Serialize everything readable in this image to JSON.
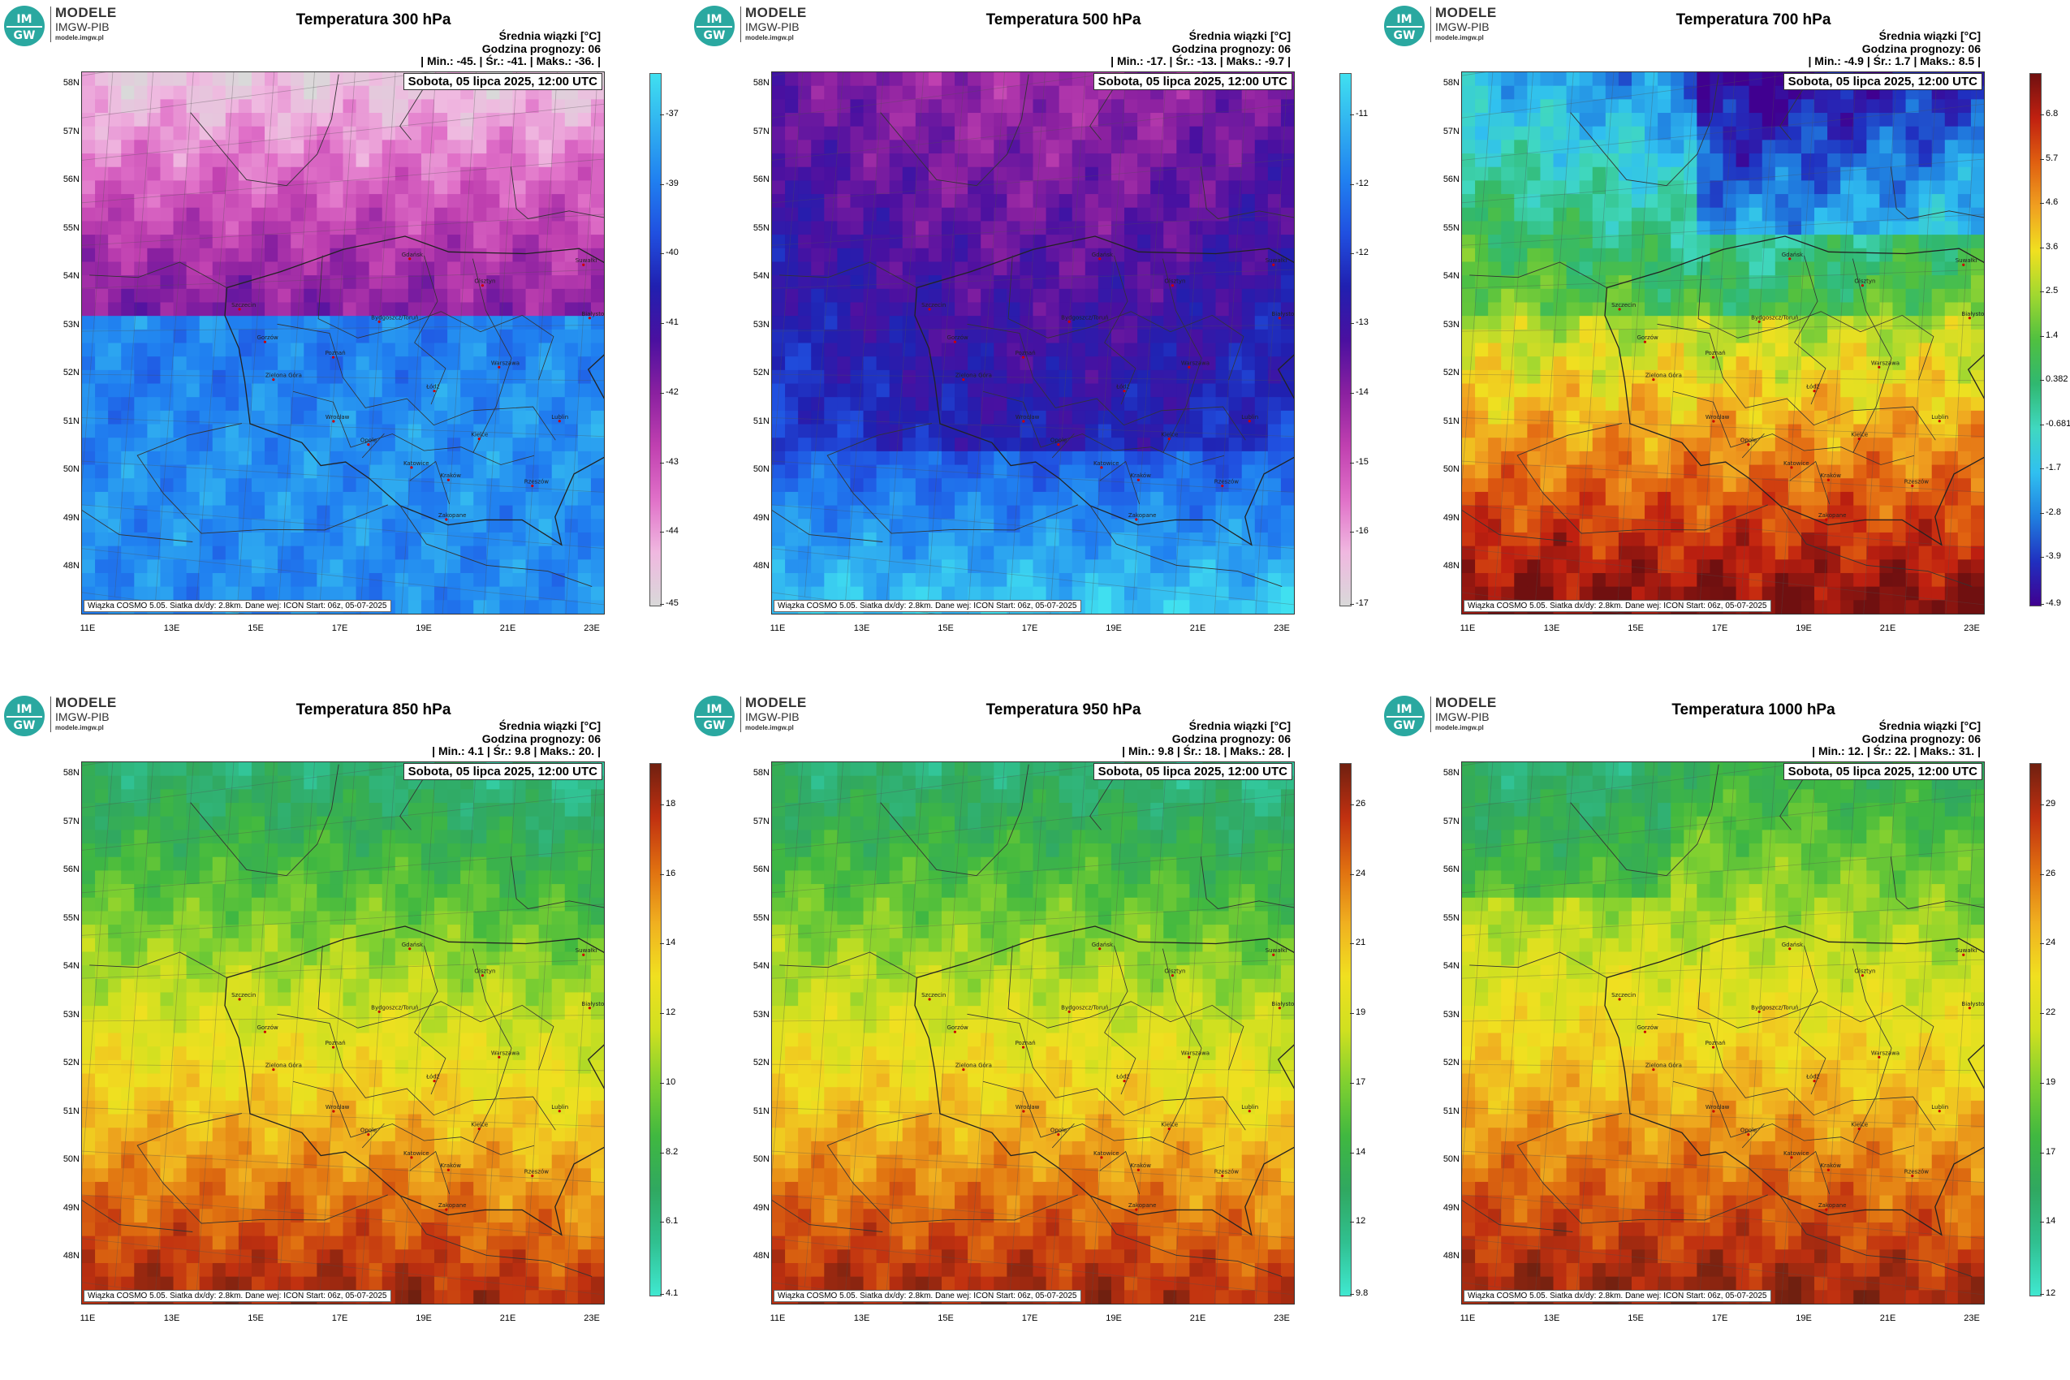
{
  "logo": {
    "badge_top": "IM",
    "badge_bottom": "GW",
    "line1": "MODELE",
    "line2": "IMGW-PIB",
    "line3": "modele.imgw.pl"
  },
  "common": {
    "header1": "Średnia wiązki [°C]",
    "header2": "Godzina prognozy: 06",
    "date": "Sobota, 05 lipca 2025, 12:00 UTC",
    "footer": "Wiązka COSMO 5.05. Siatka dx/dy: 2.8km. Dane wej: ICON Start: 06z, 05-07-2025",
    "lat_labels": [
      "58N",
      "57N",
      "56N",
      "55N",
      "54N",
      "53N",
      "52N",
      "51N",
      "50N",
      "49N",
      "48N"
    ],
    "lon_labels": [
      "11E",
      "13E",
      "15E",
      "17E",
      "19E",
      "21E",
      "23E"
    ]
  },
  "cities": [
    {
      "name": "Gdańsk",
      "lon": 18.65,
      "lat": 54.35
    },
    {
      "name": "Olsztyn",
      "lon": 20.48,
      "lat": 53.78
    },
    {
      "name": "Suwałki",
      "lon": 22.93,
      "lat": 54.1
    },
    {
      "name": "Białystok",
      "lon": 23.16,
      "lat": 53.13
    },
    {
      "name": "Szczecin",
      "lon": 14.55,
      "lat": 53.43
    },
    {
      "name": "Bydgoszcz/Toruń",
      "lon": 18.0,
      "lat": 53.12
    },
    {
      "name": "Gorzów",
      "lon": 15.23,
      "lat": 52.73
    },
    {
      "name": "Poznań",
      "lon": 16.93,
      "lat": 52.41
    },
    {
      "name": "Warszawa",
      "lon": 21.01,
      "lat": 52.23
    },
    {
      "name": "Zielona Góra",
      "lon": 15.5,
      "lat": 51.94
    },
    {
      "name": "Łódź",
      "lon": 19.46,
      "lat": 51.76
    },
    {
      "name": "Lublin",
      "lon": 22.57,
      "lat": 51.25
    },
    {
      "name": "Wrocław",
      "lon": 17.04,
      "lat": 51.11
    },
    {
      "name": "Kielce",
      "lon": 20.63,
      "lat": 50.87
    },
    {
      "name": "Opole",
      "lon": 17.93,
      "lat": 50.67
    },
    {
      "name": "Katowice",
      "lon": 19.02,
      "lat": 50.26
    },
    {
      "name": "Kraków",
      "lon": 19.94,
      "lat": 50.06
    },
    {
      "name": "Rzeszów",
      "lon": 22.0,
      "lat": 50.04
    },
    {
      "name": "Zakopane",
      "lon": 19.95,
      "lat": 49.3
    }
  ],
  "panels": [
    {
      "title": "Temperatura 300 hPa",
      "stats": "| Min.:    -45. | Śr.:    -41. | Maks.:   -36. |",
      "ticks": [
        "-37",
        "-39",
        "-40",
        "-41",
        "-42",
        "-43",
        "-44",
        "-45"
      ],
      "colormap": [
        "#d9d9d9",
        "#f0b8e0",
        "#e070c8",
        "#c040b0",
        "#8a20a0",
        "#4a10a0",
        "#2020b0",
        "#2050e0",
        "#2080f0",
        "#30b0f0",
        "#40e0f0"
      ],
      "field": {
        "type": "cold",
        "lo": -45,
        "hi": -36
      }
    },
    {
      "title": "Temperatura 500 hPa",
      "stats": "| Min.:    -17. | Śr.:    -13. | Maks.:   -9.7 |",
      "ticks": [
        "-11",
        "-12",
        "-12",
        "-13",
        "-14",
        "-15",
        "-16",
        "-17"
      ],
      "colormap": [
        "#d9d9d9",
        "#f0b8e0",
        "#e070c8",
        "#c040b0",
        "#8a20a0",
        "#4a10a0",
        "#2020b0",
        "#2050e0",
        "#2080f0",
        "#30b0f0",
        "#40e0f0"
      ],
      "field": {
        "type": "mid",
        "lo": -17,
        "hi": -9.7
      }
    },
    {
      "title": "Temperatura 700 hPa",
      "stats": "| Min.:    -4.9 | Śr.:    1.7 | Maks.:   8.5 |",
      "ticks": [
        "6.8",
        "5.7",
        "4.6",
        "3.6",
        "2.5",
        "1.4",
        "0.382",
        "-0.681",
        "-1.7",
        "-2.8",
        "-3.9",
        "-4.9"
      ],
      "colormap": [
        "#400090",
        "#2030c0",
        "#2080e0",
        "#30c0f0",
        "#40d8c0",
        "#30b870",
        "#50c040",
        "#a0d830",
        "#f0e020",
        "#f0a020",
        "#e06010",
        "#c02010",
        "#701010"
      ],
      "field": {
        "type": "warm7",
        "lo": -4.9,
        "hi": 8.5
      }
    },
    {
      "title": "Temperatura 850 hPa",
      "stats": "| Min.:    4.1 | Śr.:    9.8 | Maks.:   20. |",
      "ticks": [
        "18",
        "16",
        "14",
        "12",
        "10",
        "8.2",
        "6.1",
        "4.1"
      ],
      "colormap": [
        "#40e8d0",
        "#30c090",
        "#30a860",
        "#40b840",
        "#80d030",
        "#d0e020",
        "#f0e020",
        "#f0b020",
        "#e07010",
        "#c03010",
        "#702010"
      ],
      "field": {
        "type": "warm",
        "lo": 4.1,
        "hi": 20
      }
    },
    {
      "title": "Temperatura 950 hPa",
      "stats": "| Min.:    9.8 | Śr.:    18. | Maks.:   28. |",
      "ticks": [
        "26",
        "24",
        "21",
        "19",
        "17",
        "14",
        "12",
        "9.8"
      ],
      "colormap": [
        "#40e8d0",
        "#30c090",
        "#30a860",
        "#40b840",
        "#80d030",
        "#d0e020",
        "#f0e020",
        "#f0b020",
        "#e07010",
        "#c03010",
        "#702010"
      ],
      "field": {
        "type": "warm",
        "lo": 9.8,
        "hi": 28
      }
    },
    {
      "title": "Temperatura 1000 hPa",
      "stats": "| Min.:    12. | Śr.:    22. | Maks.:   31. |",
      "ticks": [
        "29",
        "26",
        "24",
        "22",
        "19",
        "17",
        "14",
        "12"
      ],
      "colormap": [
        "#40e8d0",
        "#30c090",
        "#30a860",
        "#40b840",
        "#80d030",
        "#d0e020",
        "#f0e020",
        "#f0b020",
        "#e07010",
        "#c03010",
        "#702010"
      ],
      "field": {
        "type": "hot",
        "lo": 12,
        "hi": 31
      }
    }
  ]
}
